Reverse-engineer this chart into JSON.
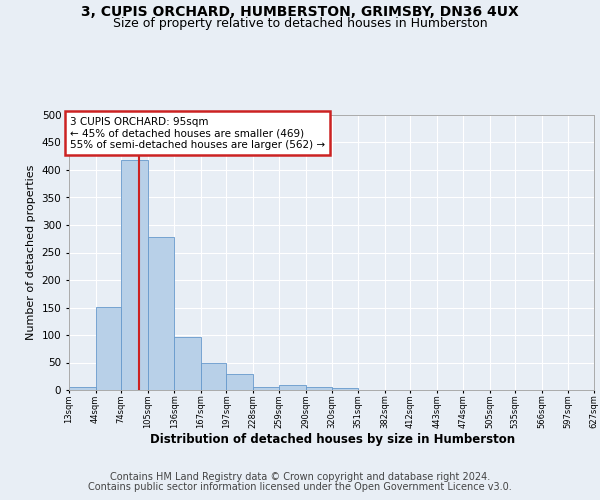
{
  "title1": "3, CUPIS ORCHARD, HUMBERSTON, GRIMSBY, DN36 4UX",
  "title2": "Size of property relative to detached houses in Humberston",
  "xlabel": "Distribution of detached houses by size in Humberston",
  "ylabel": "Number of detached properties",
  "footer1": "Contains HM Land Registry data © Crown copyright and database right 2024.",
  "footer2": "Contains public sector information licensed under the Open Government Licence v3.0.",
  "annotation_line1": "3 CUPIS ORCHARD: 95sqm",
  "annotation_line2": "← 45% of detached houses are smaller (469)",
  "annotation_line3": "55% of semi-detached houses are larger (562) →",
  "property_size": 95,
  "bar_left_edges": [
    13,
    44,
    74,
    105,
    136,
    167,
    197,
    228,
    259,
    290,
    320,
    351,
    382,
    412,
    443,
    474,
    505,
    535,
    566,
    597
  ],
  "bar_widths": [
    31,
    30,
    31,
    31,
    31,
    30,
    31,
    31,
    31,
    30,
    31,
    31,
    30,
    31,
    31,
    31,
    30,
    31,
    31,
    30
  ],
  "bar_heights": [
    5,
    151,
    418,
    278,
    96,
    49,
    30,
    6,
    10,
    5,
    3,
    0,
    0,
    0,
    0,
    0,
    0,
    0,
    0,
    0
  ],
  "bar_color": "#b8d0e8",
  "bar_edge_color": "#6699cc",
  "vline_color": "#cc2222",
  "vline_x": 95,
  "tick_labels": [
    "13sqm",
    "44sqm",
    "74sqm",
    "105sqm",
    "136sqm",
    "167sqm",
    "197sqm",
    "228sqm",
    "259sqm",
    "290sqm",
    "320sqm",
    "351sqm",
    "382sqm",
    "412sqm",
    "443sqm",
    "474sqm",
    "505sqm",
    "535sqm",
    "566sqm",
    "597sqm",
    "627sqm"
  ],
  "ylim": [
    0,
    500
  ],
  "yticks": [
    0,
    50,
    100,
    150,
    200,
    250,
    300,
    350,
    400,
    450,
    500
  ],
  "bg_color": "#e8eef5",
  "plot_bg_color": "#e8eef5",
  "grid_color": "#ffffff",
  "annotation_box_color": "#cc2222",
  "title1_fontsize": 10,
  "title2_fontsize": 9,
  "footer_fontsize": 7,
  "xlabel_fontsize": 8.5,
  "ylabel_fontsize": 8
}
